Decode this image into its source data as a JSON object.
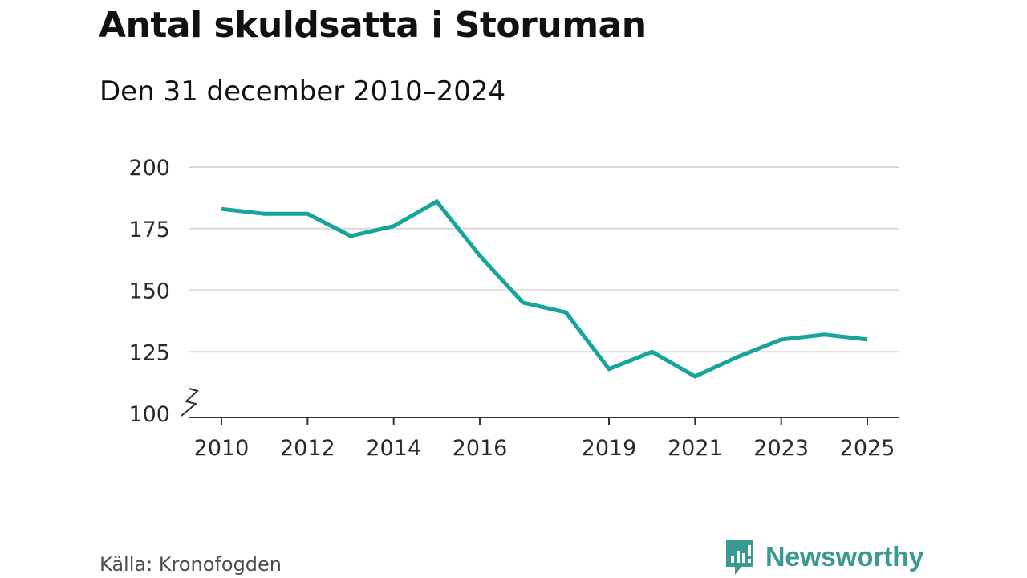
{
  "header": {
    "title": "Antal skuldsatta i Storuman",
    "subtitle": "Den 31 december 2010–2024"
  },
  "footer": {
    "source": "Källa: Kronofogden",
    "brand": "Newsworthy",
    "brand_icon": "bar-chart-speech-bubble-icon"
  },
  "colors": {
    "line": "#17a49a",
    "grid": "#d9d9d9",
    "axis": "#333333",
    "brand": "#3a9a92"
  },
  "chart_data": {
    "type": "line",
    "title": "Antal skuldsatta i Storuman",
    "subtitle": "Den 31 december 2010–2024",
    "xlabel": "",
    "ylabel": "",
    "x": [
      2010,
      2011,
      2012,
      2013,
      2014,
      2015,
      2016,
      2017,
      2018,
      2019,
      2020,
      2021,
      2022,
      2023,
      2024,
      2025
    ],
    "series": [
      {
        "name": "Antal skuldsatta",
        "values": [
          183,
          181,
          181,
          172,
          176,
          186,
          164,
          145,
          141,
          118,
          125,
          115,
          123,
          130,
          132,
          130
        ]
      }
    ],
    "xticks": [
      2010,
      2012,
      2014,
      2016,
      2019,
      2021,
      2023,
      2025
    ],
    "xtick_labels": [
      "2010",
      "2012",
      "2014",
      "2016",
      "2019",
      "2021",
      "2023",
      "2025"
    ],
    "yticks": [
      100,
      125,
      150,
      175,
      200
    ],
    "ytick_labels": [
      "100",
      "125",
      "150",
      "175",
      "200"
    ],
    "ylim": [
      100,
      200
    ],
    "xlim": [
      2010,
      2025
    ],
    "y_axis_break": true,
    "grid": true
  }
}
